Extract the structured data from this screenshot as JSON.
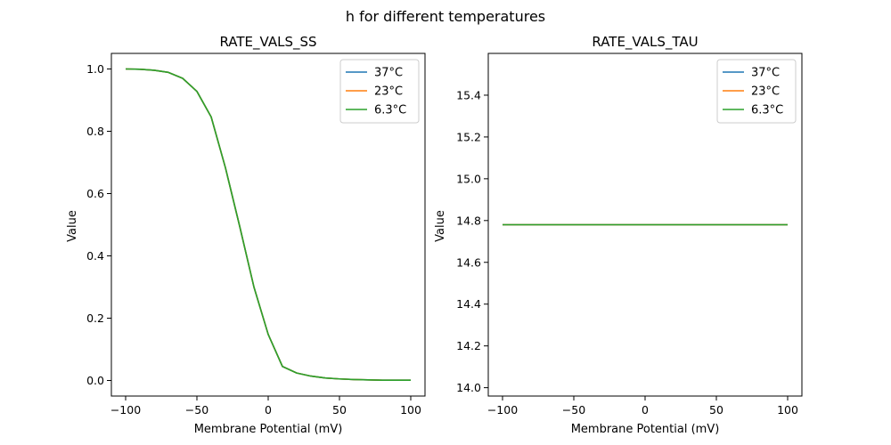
{
  "figure": {
    "suptitle": "h for different temperatures"
  },
  "colors": {
    "series": [
      "#1f77b4",
      "#ff7f0e",
      "#2ca02c"
    ]
  },
  "chart_data": [
    {
      "type": "line",
      "title": "RATE_VALS_SS",
      "xlabel": "Membrane Potential (mV)",
      "ylabel": "Value",
      "xlim": [
        -110,
        110
      ],
      "ylim": [
        -0.05,
        1.05
      ],
      "xticks": [
        -100,
        -50,
        0,
        50,
        100
      ],
      "xtick_labels": [
        "−100",
        "−50",
        "0",
        "50",
        "100"
      ],
      "yticks": [
        0.0,
        0.2,
        0.4,
        0.6,
        0.8,
        1.0
      ],
      "ytick_labels": [
        "0.0",
        "0.2",
        "0.4",
        "0.6",
        "0.8",
        "1.0"
      ],
      "grid": false,
      "legend_position": "upper right",
      "x": [
        -100,
        -90,
        -80,
        -70,
        -60,
        -50,
        -40,
        -30,
        -20,
        -10,
        0,
        10,
        20,
        30,
        40,
        50,
        60,
        70,
        80,
        90,
        100
      ],
      "series": [
        {
          "name": "37°C",
          "values": [
            1.0,
            0.999,
            0.996,
            0.989,
            0.97,
            0.928,
            0.846,
            0.683,
            0.495,
            0.3,
            0.148,
            0.045,
            0.024,
            0.014,
            0.008,
            0.005,
            0.003,
            0.002,
            0.001,
            0.001,
            0.001
          ]
        },
        {
          "name": "23°C",
          "values": [
            1.0,
            0.999,
            0.996,
            0.989,
            0.97,
            0.928,
            0.846,
            0.683,
            0.495,
            0.3,
            0.148,
            0.045,
            0.024,
            0.014,
            0.008,
            0.005,
            0.003,
            0.002,
            0.001,
            0.001,
            0.001
          ]
        },
        {
          "name": "6.3°C",
          "values": [
            1.0,
            0.999,
            0.996,
            0.989,
            0.97,
            0.928,
            0.846,
            0.683,
            0.495,
            0.3,
            0.148,
            0.045,
            0.024,
            0.014,
            0.008,
            0.005,
            0.003,
            0.002,
            0.001,
            0.001,
            0.001
          ]
        }
      ]
    },
    {
      "type": "line",
      "title": "RATE_VALS_TAU",
      "xlabel": "Membrane Potential (mV)",
      "ylabel": "Value",
      "xlim": [
        -110,
        110
      ],
      "ylim": [
        13.96,
        15.6
      ],
      "xticks": [
        -100,
        -50,
        0,
        50,
        100
      ],
      "xtick_labels": [
        "−100",
        "−50",
        "0",
        "50",
        "100"
      ],
      "yticks": [
        14.0,
        14.2,
        14.4,
        14.6,
        14.8,
        15.0,
        15.2,
        15.4
      ],
      "ytick_labels": [
        "14.0",
        "14.2",
        "14.4",
        "14.6",
        "14.8",
        "15.0",
        "15.2",
        "15.4"
      ],
      "grid": false,
      "legend_position": "upper right",
      "x": [
        -100,
        100
      ],
      "series": [
        {
          "name": "37°C",
          "values": [
            14.78,
            14.78
          ]
        },
        {
          "name": "23°C",
          "values": [
            14.78,
            14.78
          ]
        },
        {
          "name": "6.3°C",
          "values": [
            14.78,
            14.78
          ]
        }
      ]
    }
  ]
}
